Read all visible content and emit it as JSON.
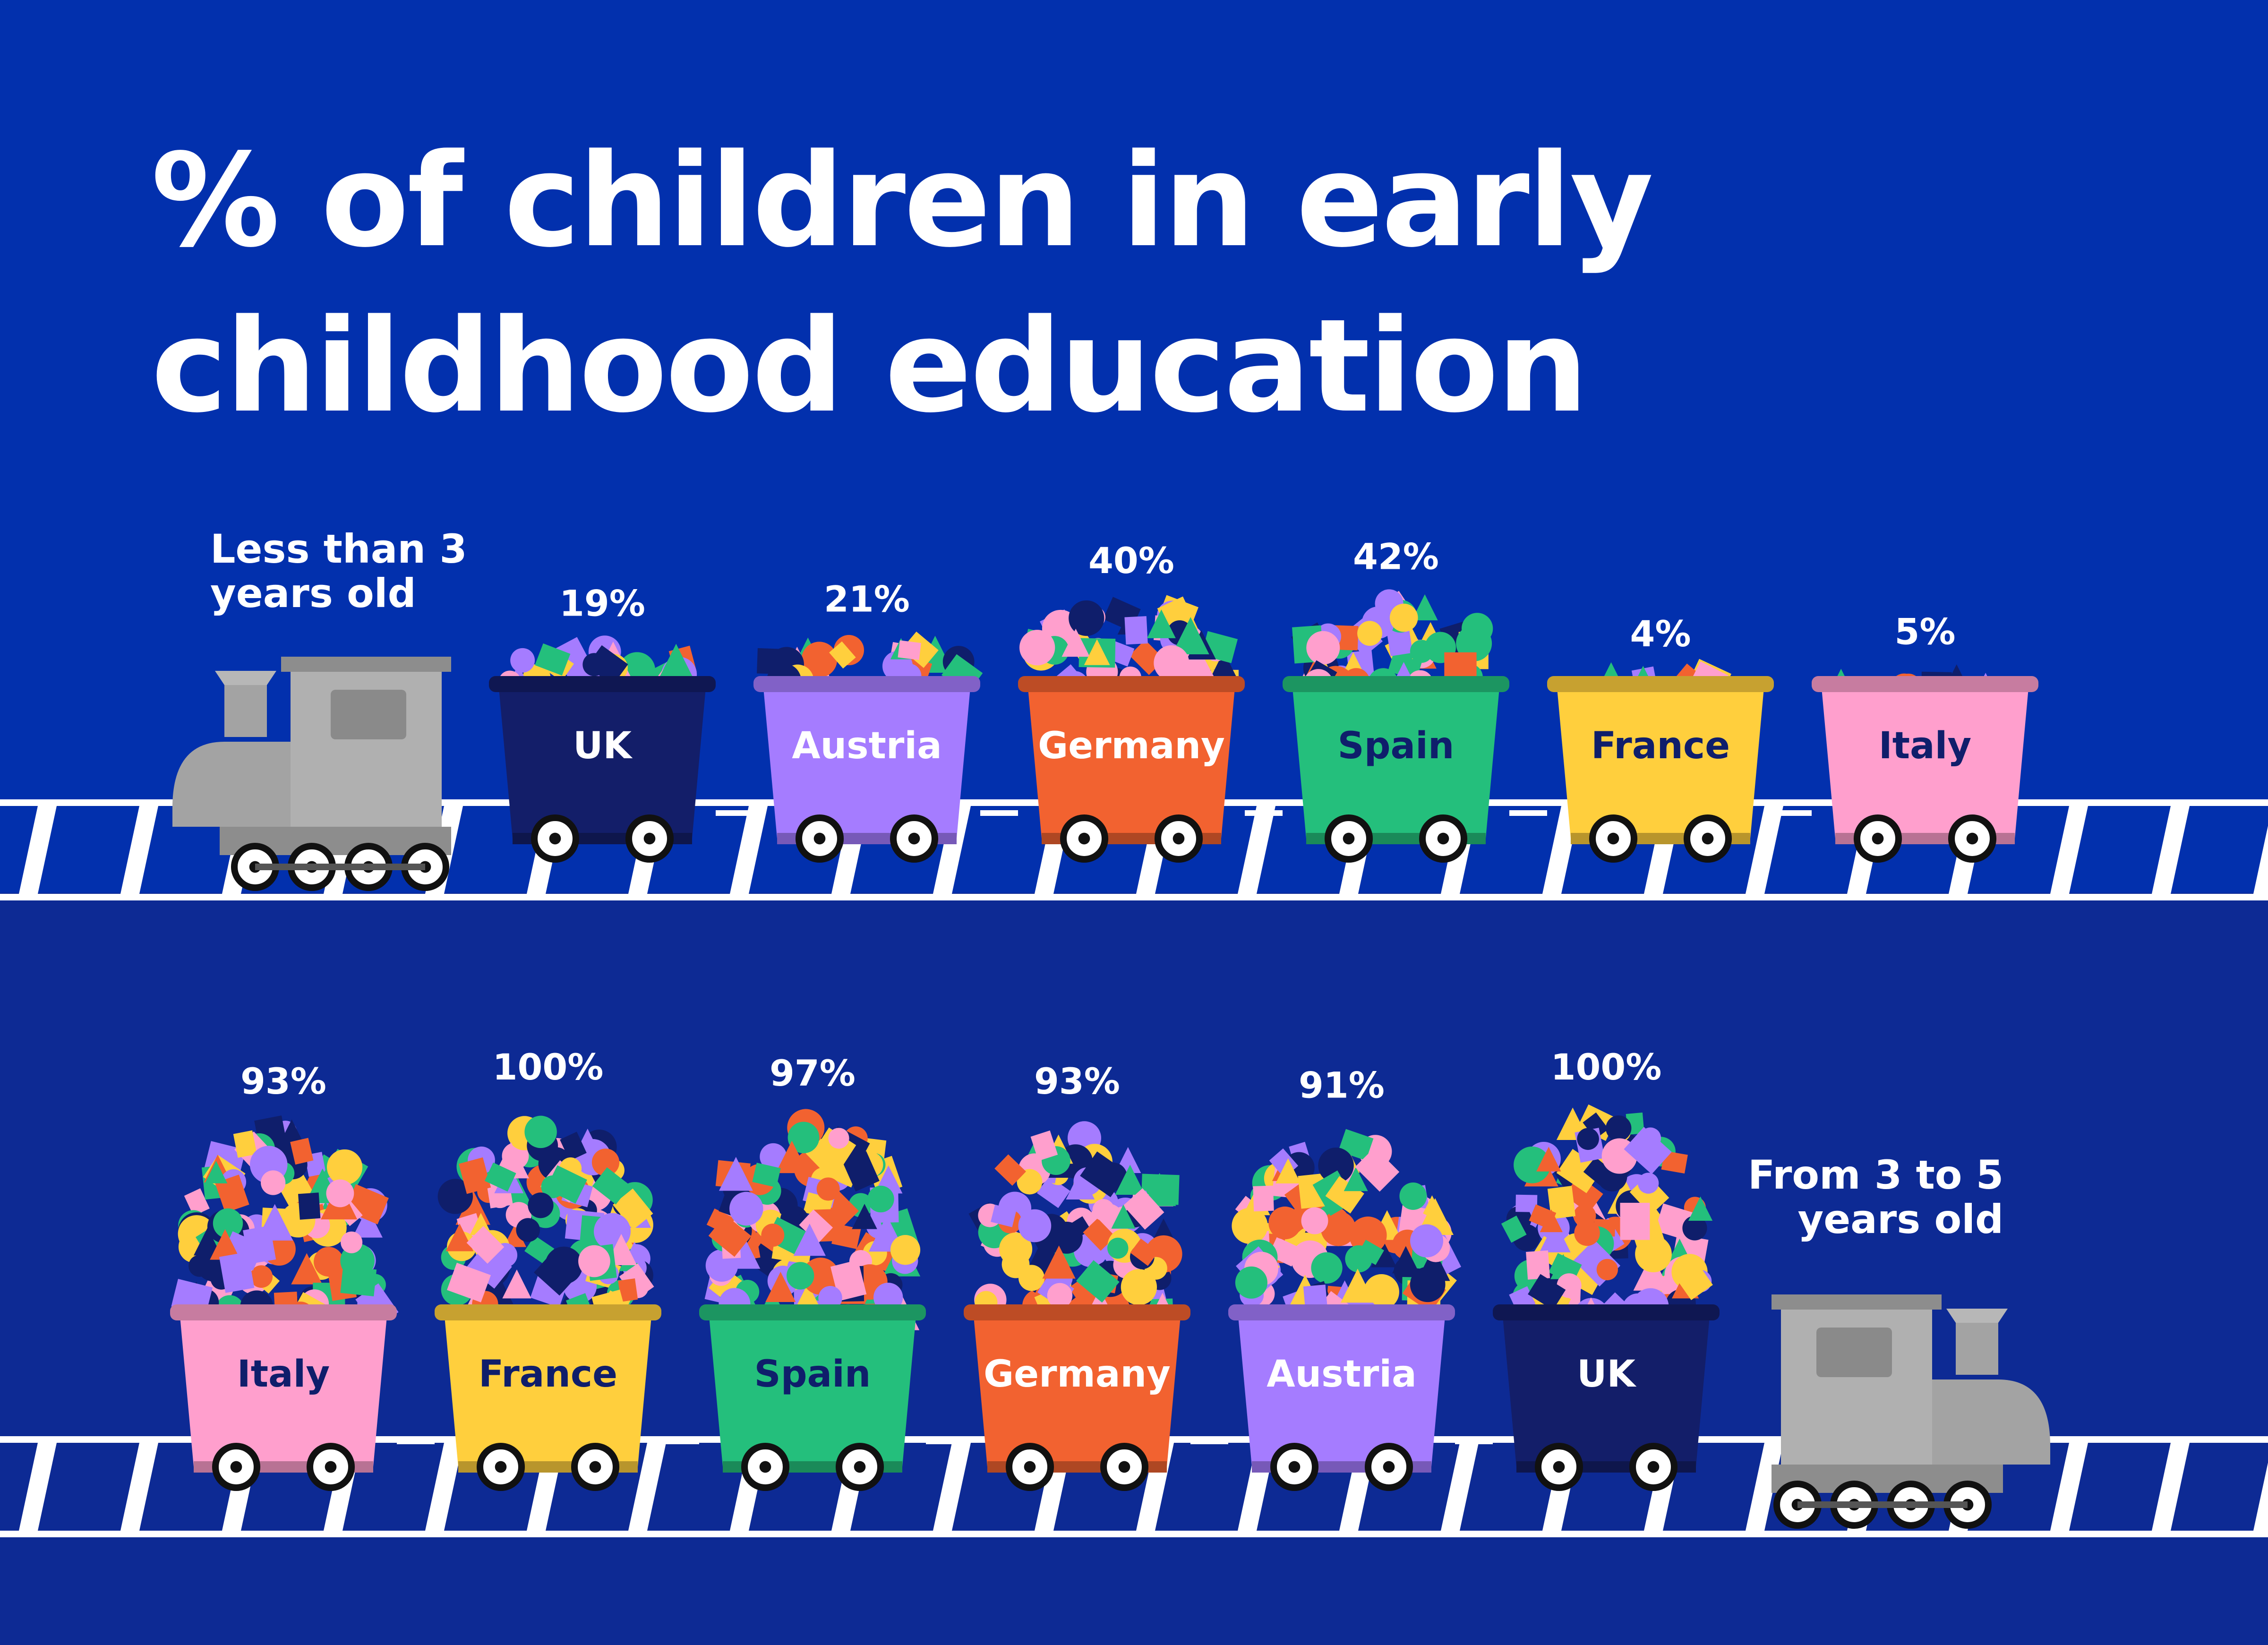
{
  "title": {
    "line1": "% of children in early",
    "line2": "childhood education"
  },
  "colors": {
    "background": "#0230ad",
    "lower_band": "#0d2a94",
    "track": "#ffffff",
    "engine": "#a3a3a3",
    "confetti": [
      "#ff9fcd",
      "#ffcf3d",
      "#f26230",
      "#a57cff",
      "#24bf7c",
      "#0f1e6b"
    ]
  },
  "chart_data": [
    {
      "type": "bar",
      "title": "% of children in early childhood education",
      "group_label": "Less than 3 years old",
      "label_lines": [
        "Less than 3",
        "years old"
      ],
      "unit": "%",
      "ylim": [
        0,
        100
      ],
      "categories": [
        "UK",
        "Austria",
        "Germany",
        "Spain",
        "France",
        "Italy"
      ],
      "values": [
        19,
        21,
        40,
        42,
        4,
        5
      ],
      "value_labels": [
        "19%",
        "21%",
        "40%",
        "42%",
        "4%",
        "5%"
      ],
      "car_colors": [
        "#131e69",
        "#a57cff",
        "#f26230",
        "#24bf7c",
        "#ffcf3d",
        "#ff9fcd"
      ],
      "text_colors": [
        "#ffffff",
        "#ffffff",
        "#ffffff",
        "#0f1e6b",
        "#0f1e6b",
        "#0f1e6b"
      ]
    },
    {
      "type": "bar",
      "title": "% of children in early childhood education",
      "group_label": "From 3 to 5 years old",
      "label_lines": [
        "From 3 to 5",
        "years old"
      ],
      "unit": "%",
      "ylim": [
        0,
        100
      ],
      "categories": [
        "Italy",
        "France",
        "Spain",
        "Germany",
        "Austria",
        "UK"
      ],
      "values": [
        93,
        100,
        97,
        93,
        91,
        100
      ],
      "value_labels": [
        "93%",
        "100%",
        "97%",
        "93%",
        "91%",
        "100%"
      ],
      "car_colors": [
        "#ff9fcd",
        "#ffcf3d",
        "#24bf7c",
        "#f26230",
        "#a57cff",
        "#131e69"
      ],
      "text_colors": [
        "#0f1e6b",
        "#0f1e6b",
        "#0f1e6b",
        "#ffffff",
        "#ffffff",
        "#ffffff"
      ]
    }
  ]
}
